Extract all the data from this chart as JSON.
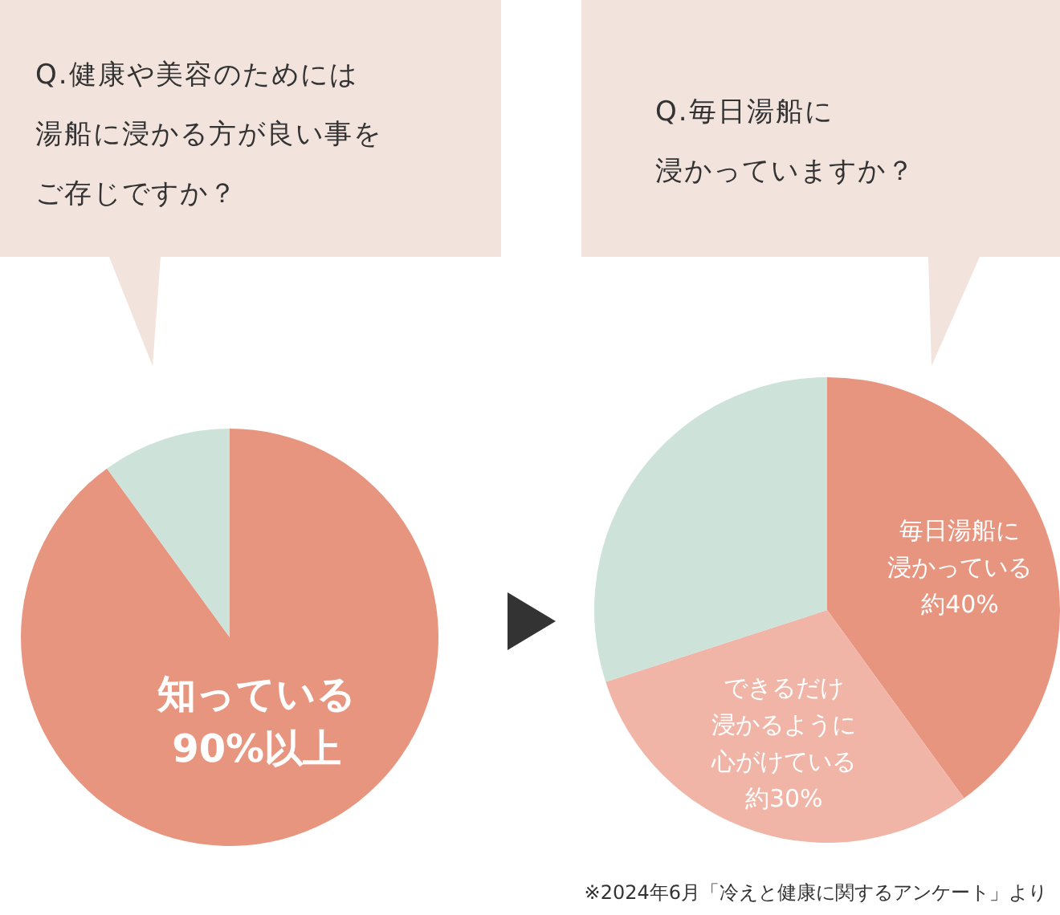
{
  "chart_data": [
    {
      "type": "pie",
      "title": "Q.健康や美容のためには湯船に浸かる方が良い事をご存じですか？",
      "categories": [
        "知っている",
        null
      ],
      "values": [
        90,
        10
      ],
      "value_labels": [
        "90%以上",
        null
      ],
      "colors": [
        "#e8957f",
        "#cde3da"
      ]
    },
    {
      "type": "pie",
      "title": "Q.毎日湯船に浸かっていますか？",
      "categories": [
        "毎日湯船に浸かっている",
        "できるだけ浸かるように心がけている",
        null
      ],
      "values": [
        40,
        30,
        30
      ],
      "value_labels": [
        "約40%",
        "約30%",
        null
      ],
      "colors": [
        "#e8957f",
        "#f0b5a7",
        "#cde3da"
      ],
      "annotations": [
        "※2024年6月「冷えと健康に関するアンケート」より"
      ]
    }
  ]
}
